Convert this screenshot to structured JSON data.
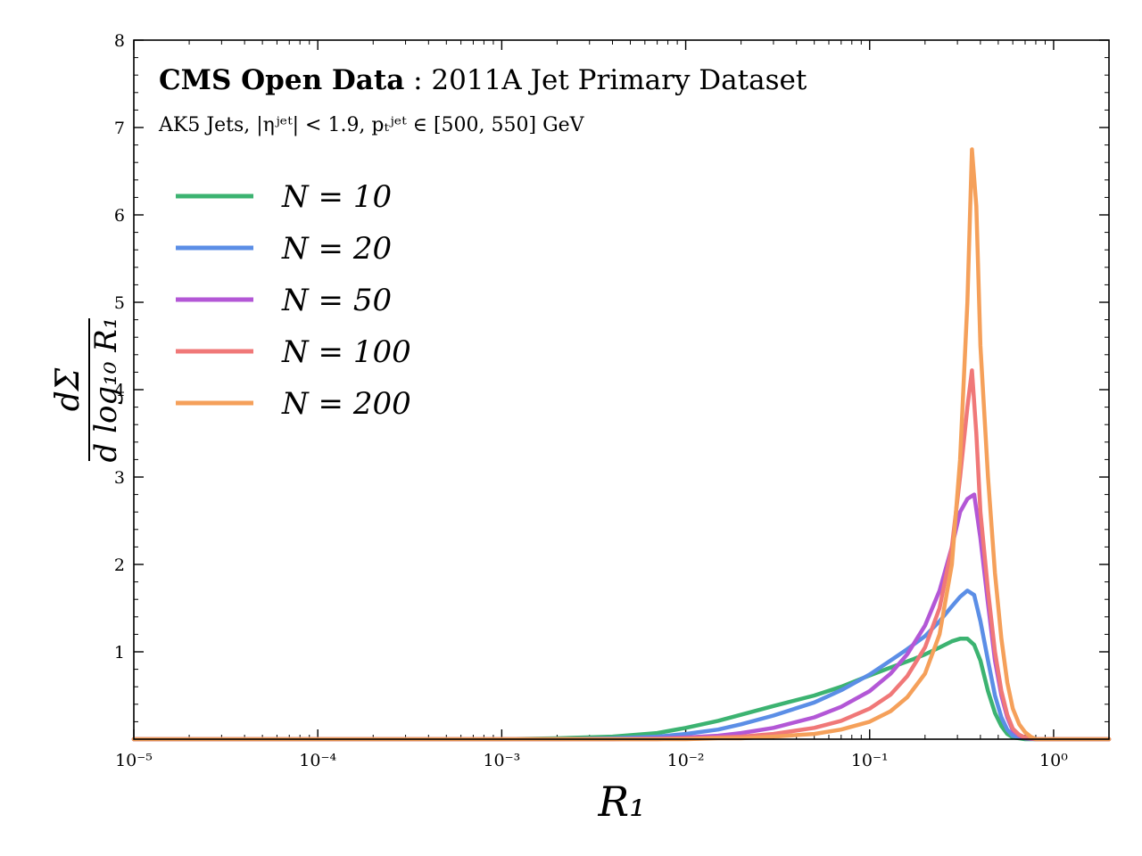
{
  "chart_data": {
    "type": "line",
    "title_bold": "CMS Open Data",
    "title_rest": " : 2011A Jet Primary Dataset",
    "subtitle": "AK5 Jets, |ηʲᵉᵗ| < 1.9, pₜʲᵉᵗ ∈ [500, 550] GeV",
    "xlabel": "R₁",
    "ylabel_num": "dΣ",
    "ylabel_den": "d log₁₀ R₁",
    "xscale": "log",
    "xlim": [
      1e-05,
      2.0
    ],
    "ylim": [
      0,
      8
    ],
    "grid": false,
    "legend_position": "upper-left",
    "x_tick_labels": [
      "10⁻⁵",
      "10⁻⁴",
      "10⁻³",
      "10⁻²",
      "10⁻¹",
      "10⁰"
    ],
    "y_tick_labels": [
      "1",
      "2",
      "3",
      "4",
      "5",
      "6",
      "7",
      "8"
    ],
    "series": [
      {
        "name": "N = 10",
        "color": "#3cb371",
        "x": [
          1e-05,
          0.001,
          0.002,
          0.004,
          0.007,
          0.01,
          0.015,
          0.02,
          0.03,
          0.05,
          0.07,
          0.1,
          0.13,
          0.17,
          0.2,
          0.24,
          0.28,
          0.31,
          0.34,
          0.37,
          0.4,
          0.44,
          0.48,
          0.52,
          0.56,
          0.6,
          0.7,
          0.8,
          2.0
        ],
        "y": [
          0,
          0,
          0.01,
          0.03,
          0.07,
          0.13,
          0.21,
          0.28,
          0.38,
          0.5,
          0.6,
          0.73,
          0.82,
          0.91,
          0.97,
          1.05,
          1.12,
          1.15,
          1.15,
          1.08,
          0.9,
          0.55,
          0.3,
          0.15,
          0.06,
          0.02,
          0,
          0,
          0
        ]
      },
      {
        "name": "N = 20",
        "color": "#5b8ee6",
        "x": [
          1e-05,
          0.002,
          0.004,
          0.007,
          0.01,
          0.015,
          0.02,
          0.03,
          0.05,
          0.07,
          0.1,
          0.13,
          0.16,
          0.2,
          0.24,
          0.28,
          0.31,
          0.34,
          0.37,
          0.4,
          0.44,
          0.48,
          0.52,
          0.56,
          0.6,
          0.7,
          0.8,
          2.0
        ],
        "y": [
          0,
          0,
          0.01,
          0.03,
          0.06,
          0.11,
          0.17,
          0.27,
          0.42,
          0.56,
          0.74,
          0.9,
          1.03,
          1.18,
          1.35,
          1.52,
          1.63,
          1.7,
          1.65,
          1.35,
          0.9,
          0.5,
          0.25,
          0.11,
          0.04,
          0.01,
          0,
          0
        ]
      },
      {
        "name": "N = 50",
        "color": "#b357d6",
        "x": [
          1e-05,
          0.004,
          0.007,
          0.01,
          0.015,
          0.02,
          0.03,
          0.05,
          0.07,
          0.1,
          0.13,
          0.16,
          0.2,
          0.24,
          0.28,
          0.31,
          0.34,
          0.37,
          0.4,
          0.44,
          0.48,
          0.52,
          0.56,
          0.6,
          0.65,
          0.7,
          0.8,
          2.0
        ],
        "y": [
          0,
          0,
          0.01,
          0.02,
          0.04,
          0.07,
          0.13,
          0.25,
          0.37,
          0.55,
          0.75,
          0.97,
          1.3,
          1.7,
          2.2,
          2.6,
          2.75,
          2.8,
          2.3,
          1.55,
          0.9,
          0.5,
          0.25,
          0.1,
          0.04,
          0.01,
          0,
          0
        ]
      },
      {
        "name": "N = 100",
        "color": "#f07878",
        "x": [
          1e-05,
          0.007,
          0.01,
          0.015,
          0.02,
          0.03,
          0.05,
          0.07,
          0.1,
          0.13,
          0.16,
          0.2,
          0.24,
          0.28,
          0.31,
          0.34,
          0.36,
          0.38,
          0.4,
          0.44,
          0.48,
          0.52,
          0.56,
          0.6,
          0.65,
          0.7,
          0.8,
          2.0
        ],
        "y": [
          0,
          0,
          0.01,
          0.02,
          0.03,
          0.06,
          0.13,
          0.21,
          0.35,
          0.51,
          0.72,
          1.05,
          1.5,
          2.2,
          3.0,
          3.8,
          4.22,
          3.5,
          2.6,
          1.7,
          1.0,
          0.55,
          0.28,
          0.12,
          0.05,
          0.02,
          0,
          0
        ]
      },
      {
        "name": "N = 200",
        "color": "#f5a05a",
        "x": [
          1e-05,
          0.01,
          0.015,
          0.02,
          0.03,
          0.05,
          0.07,
          0.1,
          0.13,
          0.16,
          0.2,
          0.24,
          0.28,
          0.31,
          0.34,
          0.36,
          0.38,
          0.4,
          0.44,
          0.48,
          0.52,
          0.56,
          0.6,
          0.65,
          0.7,
          0.75,
          0.8,
          2.0
        ],
        "y": [
          0,
          0,
          0.01,
          0.01,
          0.03,
          0.06,
          0.11,
          0.2,
          0.32,
          0.48,
          0.75,
          1.2,
          2.0,
          3.2,
          5.0,
          6.75,
          6.1,
          4.5,
          3.0,
          1.9,
          1.15,
          0.65,
          0.35,
          0.17,
          0.08,
          0.03,
          0,
          0
        ]
      }
    ]
  }
}
